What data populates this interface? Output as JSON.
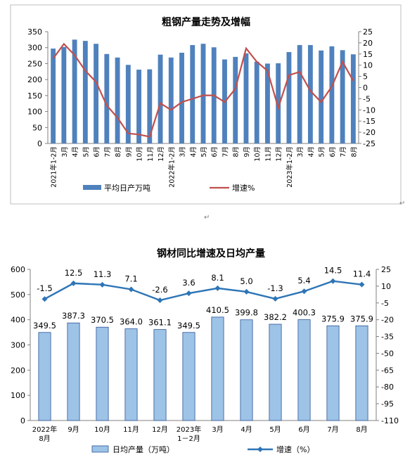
{
  "chart_data": [
    {
      "type": "bar",
      "title": "粗钢产量走势及增幅",
      "categories": [
        "2021年1-2月",
        "3月",
        "4月",
        "5月",
        "6月",
        "7月",
        "8月",
        "9月",
        "10月",
        "11月",
        "12月",
        "2022年1-2月",
        "3月",
        "4月",
        "5月",
        "6月",
        "7月",
        "8月",
        "9月",
        "10月",
        "11月",
        "12月",
        "2023年1-2月",
        "3月",
        "4月",
        "5月",
        "6月",
        "7月",
        "8月"
      ],
      "series": [
        {
          "name": "平均日产万吨",
          "kind": "bar",
          "axis": "left",
          "color": "#4f81bd",
          "values": [
            297,
            302,
            325,
            321,
            312,
            280,
            269,
            246,
            231,
            232,
            278,
            269,
            284,
            308,
            312,
            301,
            263,
            271,
            282,
            256,
            250,
            251,
            286,
            308,
            308,
            291,
            304,
            292,
            279
          ]
        },
        {
          "name": "增速%",
          "kind": "line",
          "axis": "right",
          "color": "#c0504d",
          "values": [
            13,
            19.5,
            14.5,
            7.5,
            2.5,
            -8,
            -13.5,
            -20.5,
            -21,
            -22,
            -7,
            -10,
            -6.5,
            -5,
            -3.5,
            -3.5,
            -6.5,
            -0.5,
            17.5,
            11.5,
            7.5,
            -9,
            5.5,
            7,
            -1.5,
            -6.5,
            0.5,
            11.5,
            3
          ]
        }
      ],
      "y_left": {
        "ticks": [
          0,
          50,
          100,
          150,
          200,
          250,
          300,
          350
        ],
        "range": [
          0,
          350
        ]
      },
      "y_right": {
        "ticks": [
          25,
          20,
          15,
          10,
          5,
          0,
          -5,
          -10,
          -15,
          -20,
          -25
        ],
        "range": [
          -25,
          25
        ]
      },
      "legend": {
        "position": "bottom",
        "items": [
          "平均日产万吨",
          "增速%"
        ]
      },
      "grid": false
    },
    {
      "type": "bar",
      "title": "钢材同比增速及日均产量",
      "categories": [
        "2022年\n8月",
        "9月",
        "10月",
        "11月",
        "12月",
        "2023年\n1－2月",
        "3月",
        "4月",
        "5月",
        "6月",
        "7月",
        "8月"
      ],
      "series": [
        {
          "name": "日均产量（万吨）",
          "kind": "bar",
          "axis": "left",
          "color": "#9dc3e6",
          "values": [
            349.5,
            387.3,
            370.5,
            364.0,
            361.1,
            349.5,
            410.5,
            399.8,
            382.2,
            400.3,
            375.9,
            375.9
          ],
          "labels": [
            "349.5",
            "387.3",
            "370.5",
            "364.0",
            "361.1",
            "349.5",
            "410.5",
            "399.8",
            "382.2",
            "400.3",
            "375.9",
            "375.9"
          ]
        },
        {
          "name": "增速（%）",
          "kind": "line",
          "axis": "right",
          "color": "#2e75b6",
          "values": [
            -1.5,
            12.5,
            11.3,
            7.1,
            -2.6,
            3.6,
            8.1,
            5.0,
            -1.3,
            5.4,
            14.5,
            11.4
          ],
          "labels": [
            "-1.5",
            "12.5",
            "11.3",
            "7.1",
            "-2.6",
            "3.6",
            "8.1",
            "5.0",
            "-1.3",
            "5.4",
            "14.5",
            "11.4"
          ]
        }
      ],
      "y_left": {
        "ticks": [
          0,
          100,
          200,
          300,
          400,
          500,
          600
        ],
        "range": [
          0,
          600
        ]
      },
      "y_right": {
        "ticks": [
          25,
          10,
          -5,
          -20,
          -35,
          -50,
          -65,
          -80,
          -95,
          -110
        ],
        "range": [
          -110,
          25
        ]
      },
      "legend": {
        "position": "bottom",
        "items": [
          "日均产量（万吨）",
          "增速（%）"
        ]
      },
      "grid": false
    }
  ],
  "decor": {
    "mark1": "↵",
    "mark2": "↵"
  }
}
